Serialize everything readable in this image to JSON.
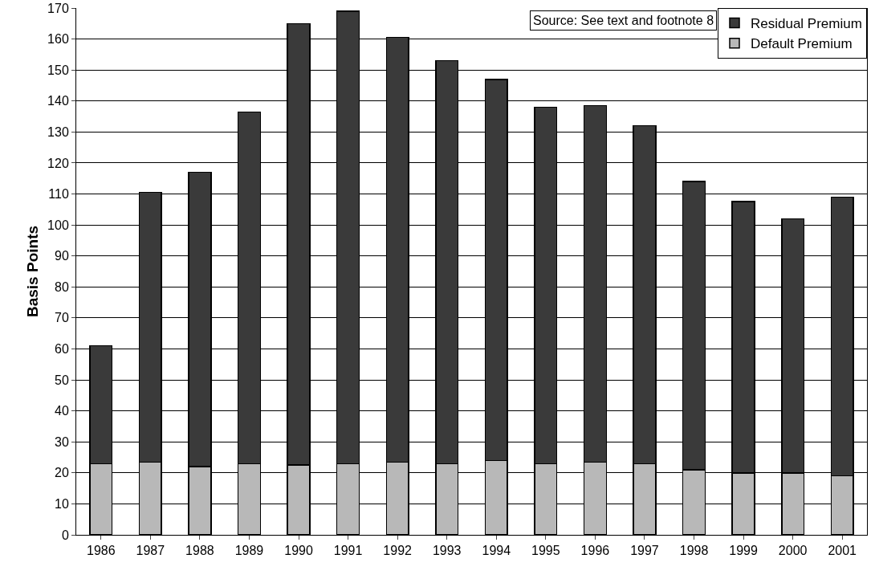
{
  "chart_data": {
    "type": "bar",
    "stacked": true,
    "ylabel": "Basis Points",
    "categories": [
      "1986",
      "1987",
      "1988",
      "1989",
      "1990",
      "1991",
      "1992",
      "1993",
      "1994",
      "1995",
      "1996",
      "1997",
      "1998",
      "1999",
      "2000",
      "2001"
    ],
    "series": [
      {
        "name": "Default Premium",
        "color": "#b8b8b8",
        "values": [
          23,
          23.5,
          22,
          23,
          22.5,
          23,
          23.5,
          23,
          24,
          23,
          23.5,
          23,
          21,
          20,
          20,
          19
        ]
      },
      {
        "name": "Residual Premium",
        "color": "#3a3a3a",
        "values": [
          38,
          87,
          95,
          113.5,
          142.5,
          146,
          137,
          130,
          123,
          115,
          115,
          109,
          93,
          87.5,
          82,
          90
        ]
      }
    ],
    "ylim": [
      0,
      170
    ],
    "yticks": [
      0,
      10,
      20,
      30,
      40,
      50,
      60,
      70,
      80,
      90,
      100,
      110,
      120,
      130,
      140,
      150,
      160,
      170
    ],
    "grid": "y",
    "legend": "top right",
    "annotations": [
      "Source: See text and footnote 8"
    ]
  }
}
